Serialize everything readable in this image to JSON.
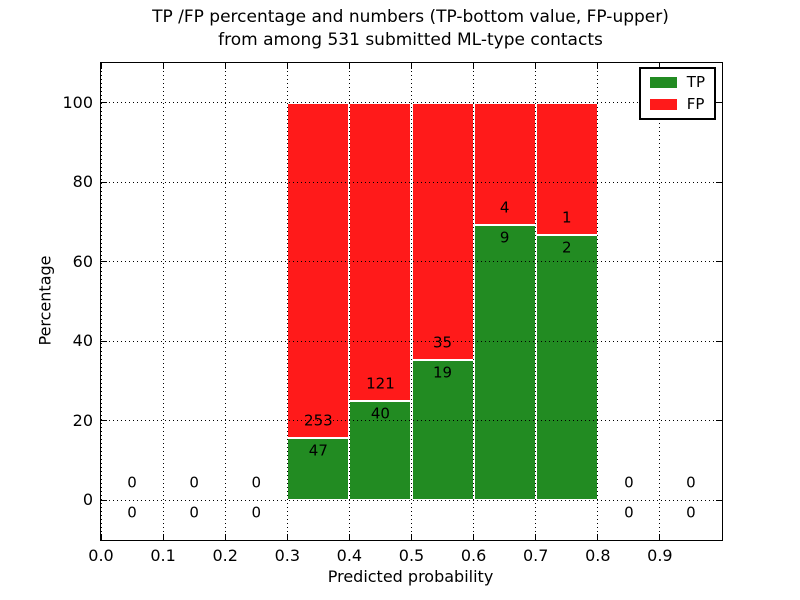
{
  "chart_data": {
    "type": "bar",
    "stacked": true,
    "title": "TP /FP percentage and numbers (TP-bottom value, FP-upper)\nfrom among 531 submitted ML-type contacts",
    "title_lines": [
      "TP /FP percentage and numbers (TP-bottom value, FP-upper)",
      "from among 531 submitted ML-type contacts"
    ],
    "xlabel": "Predicted probability",
    "ylabel": "Percentage",
    "total_contacts": 531,
    "xlim": [
      0.0,
      1.0
    ],
    "ylim": [
      -10,
      110
    ],
    "xticks": [
      "0.0",
      "0.1",
      "0.2",
      "0.3",
      "0.4",
      "0.5",
      "0.6",
      "0.7",
      "0.8",
      "0.9"
    ],
    "yticks": [
      "0",
      "20",
      "40",
      "60",
      "80",
      "100"
    ],
    "grid": true,
    "grid_style": "dotted",
    "bin_width": 0.1,
    "categories": [
      0.0,
      0.1,
      0.2,
      0.3,
      0.4,
      0.5,
      0.6,
      0.7,
      0.8,
      0.9
    ],
    "series": [
      {
        "name": "TP",
        "color": "#228B22",
        "counts": [
          0,
          0,
          0,
          47,
          40,
          19,
          9,
          2,
          0,
          0
        ]
      },
      {
        "name": "FP",
        "color": "#ff1a1a",
        "counts": [
          0,
          0,
          0,
          253,
          121,
          35,
          4,
          1,
          0,
          0
        ]
      }
    ],
    "tp_percent": [
      0,
      0,
      0,
      15.67,
      24.84,
      35.19,
      69.23,
      66.67,
      0,
      0
    ],
    "bar_edge_color": "#ffffff",
    "legend": {
      "position": "upper right",
      "entries": [
        {
          "label": "TP",
          "color": "#228B22"
        },
        {
          "label": "FP",
          "color": "#ff1a1a"
        }
      ]
    }
  }
}
